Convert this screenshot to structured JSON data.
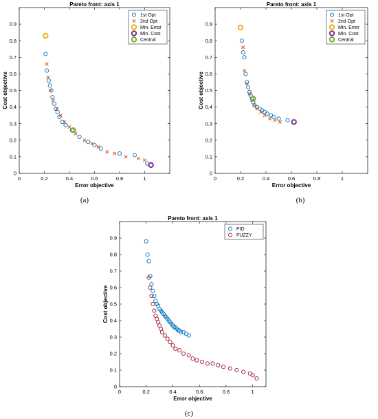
{
  "chart_data": [
    {
      "panel": "(a)",
      "type": "scatter",
      "title": "Pareto front: axis 1",
      "xlabel": "Error objective",
      "ylabel": "Cost objective",
      "xlim": [
        0,
        1.2
      ],
      "ylim": [
        0,
        1
      ],
      "xticks": [
        "0",
        "0.2",
        "0.4",
        "0.6",
        "0.8",
        "1"
      ],
      "yticks": [
        "0",
        "0.1",
        "0.2",
        "0.3",
        "0.4",
        "0.5",
        "0.6",
        "0.7",
        "0.8",
        "0.9"
      ],
      "legend": "top-right",
      "series": [
        {
          "name": "1st Opt",
          "marker": "circle",
          "color": "#0072bd",
          "x": [
            0.21,
            0.22,
            0.235,
            0.245,
            0.255,
            0.265,
            0.28,
            0.29,
            0.305,
            0.32,
            0.345,
            0.37,
            0.42,
            0.48,
            0.55,
            0.6,
            0.65,
            0.8,
            0.92,
            1.02
          ],
          "y": [
            0.72,
            0.62,
            0.56,
            0.53,
            0.5,
            0.46,
            0.42,
            0.39,
            0.37,
            0.34,
            0.31,
            0.29,
            0.26,
            0.22,
            0.19,
            0.17,
            0.15,
            0.12,
            0.11,
            0.06
          ]
        },
        {
          "name": "2nd Opt",
          "marker": "x",
          "color": "#d95319",
          "x": [
            0.22,
            0.23,
            0.25,
            0.27,
            0.3,
            0.33,
            0.36,
            0.4,
            0.45,
            0.52,
            0.58,
            0.63,
            0.7,
            0.76,
            0.85,
            0.95,
            1.0
          ],
          "y": [
            0.66,
            0.58,
            0.5,
            0.44,
            0.39,
            0.35,
            0.31,
            0.28,
            0.24,
            0.2,
            0.18,
            0.16,
            0.13,
            0.12,
            0.1,
            0.09,
            0.08
          ]
        },
        {
          "name": "Min. Error",
          "marker": "circle-bold",
          "color": "#edb120",
          "x": [
            0.21
          ],
          "y": [
            0.83
          ]
        },
        {
          "name": "Min. Cost",
          "marker": "circle-bold",
          "color": "#7e2f8e",
          "x": [
            1.05
          ],
          "y": [
            0.05
          ]
        },
        {
          "name": "Central",
          "marker": "circle-bold",
          "color": "#77ac30",
          "x": [
            0.43
          ],
          "y": [
            0.26
          ]
        }
      ]
    },
    {
      "panel": "(b)",
      "type": "scatter",
      "title": "Pareto front: axis 1",
      "xlabel": "Error objective",
      "ylabel": "Cost objective",
      "xlim": [
        0,
        1.2
      ],
      "ylim": [
        0,
        1
      ],
      "xticks": [
        "0",
        "0.2",
        "0.4",
        "0.6",
        "0.8",
        "1"
      ],
      "yticks": [
        "0",
        "0.1",
        "0.2",
        "0.3",
        "0.4",
        "0.5",
        "0.6",
        "0.7",
        "0.8",
        "0.9"
      ],
      "legend": "top-right",
      "series": [
        {
          "name": "1st Opt",
          "marker": "circle",
          "color": "#0072bd",
          "x": [
            0.21,
            0.22,
            0.23,
            0.24,
            0.25,
            0.26,
            0.27,
            0.28,
            0.29,
            0.3,
            0.31,
            0.33,
            0.35,
            0.37,
            0.39,
            0.41,
            0.44,
            0.46,
            0.5,
            0.57
          ],
          "y": [
            0.8,
            0.73,
            0.7,
            0.6,
            0.55,
            0.52,
            0.49,
            0.47,
            0.45,
            0.43,
            0.41,
            0.4,
            0.39,
            0.38,
            0.37,
            0.36,
            0.35,
            0.34,
            0.33,
            0.32
          ]
        },
        {
          "name": "2nd Opt",
          "marker": "x",
          "color": "#d95319",
          "x": [
            0.22,
            0.23,
            0.25,
            0.27,
            0.29,
            0.31,
            0.33,
            0.36,
            0.39,
            0.43,
            0.47,
            0.51
          ],
          "y": [
            0.76,
            0.62,
            0.54,
            0.48,
            0.44,
            0.41,
            0.39,
            0.37,
            0.35,
            0.33,
            0.32,
            0.31
          ]
        },
        {
          "name": "Min. Error",
          "marker": "circle-bold",
          "color": "#edb120",
          "x": [
            0.2
          ],
          "y": [
            0.88
          ]
        },
        {
          "name": "Min. Cost",
          "marker": "circle-bold",
          "color": "#7e2f8e",
          "x": [
            0.62
          ],
          "y": [
            0.31
          ]
        },
        {
          "name": "Central",
          "marker": "circle-bold",
          "color": "#77ac30",
          "x": [
            0.3
          ],
          "y": [
            0.45
          ]
        }
      ]
    },
    {
      "panel": "(c)",
      "type": "scatter",
      "title": "Pareto front: axis 1",
      "xlabel": "Error objective",
      "ylabel": "Cost objective",
      "xlim": [
        0,
        1.1
      ],
      "ylim": [
        0,
        1
      ],
      "xticks": [
        "0",
        "0.2",
        "0.4",
        "0.6",
        "0.8",
        "1"
      ],
      "yticks": [
        "0",
        "0.1",
        "0.2",
        "0.3",
        "0.4",
        "0.5",
        "0.6",
        "0.7",
        "0.8",
        "0.9"
      ],
      "legend": "top-right",
      "series": [
        {
          "name": "PID",
          "marker": "circle",
          "color": "#0072bd",
          "x": [
            0.2,
            0.21,
            0.22,
            0.23,
            0.24,
            0.25,
            0.26,
            0.27,
            0.28,
            0.29,
            0.3,
            0.31,
            0.32,
            0.33,
            0.34,
            0.35,
            0.36,
            0.37,
            0.38,
            0.39,
            0.4,
            0.41,
            0.42,
            0.43,
            0.44,
            0.45,
            0.46,
            0.48,
            0.5,
            0.52
          ],
          "y": [
            0.88,
            0.8,
            0.76,
            0.67,
            0.62,
            0.58,
            0.55,
            0.52,
            0.5,
            0.49,
            0.47,
            0.46,
            0.45,
            0.44,
            0.43,
            0.42,
            0.41,
            0.4,
            0.39,
            0.38,
            0.37,
            0.36,
            0.36,
            0.35,
            0.34,
            0.34,
            0.33,
            0.33,
            0.32,
            0.31
          ]
        },
        {
          "name": "FUZZY",
          "marker": "circle",
          "color": "#a2142f",
          "x": [
            0.22,
            0.23,
            0.24,
            0.25,
            0.26,
            0.27,
            0.28,
            0.29,
            0.3,
            0.31,
            0.32,
            0.34,
            0.36,
            0.38,
            0.4,
            0.42,
            0.45,
            0.48,
            0.52,
            0.55,
            0.58,
            0.62,
            0.66,
            0.7,
            0.74,
            0.78,
            0.83,
            0.88,
            0.93,
            0.98,
            1.0,
            1.03
          ],
          "y": [
            0.66,
            0.6,
            0.55,
            0.5,
            0.46,
            0.43,
            0.41,
            0.39,
            0.37,
            0.35,
            0.33,
            0.31,
            0.29,
            0.27,
            0.25,
            0.23,
            0.22,
            0.2,
            0.19,
            0.17,
            0.16,
            0.15,
            0.14,
            0.14,
            0.13,
            0.12,
            0.11,
            0.1,
            0.09,
            0.08,
            0.07,
            0.05
          ]
        }
      ]
    }
  ],
  "captions": [
    "(a)",
    "(b)",
    "(c)"
  ]
}
